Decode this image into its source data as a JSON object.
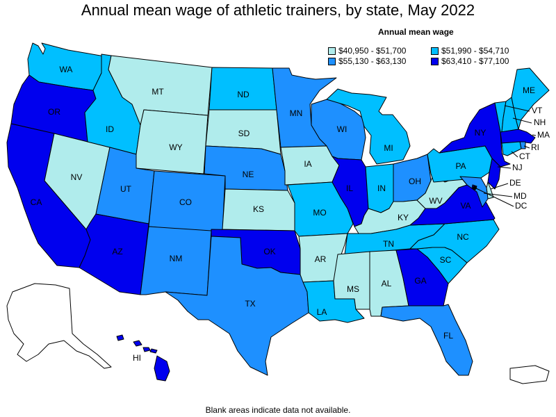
{
  "title": "Annual mean wage of athletic trainers, by state, May 2022",
  "legend": {
    "title": "Annual mean wage",
    "bins": [
      {
        "id": "b1",
        "label": "$40,950 - $51,700",
        "color": "#b0ecec"
      },
      {
        "id": "b2",
        "label": "$51,990 - $54,710",
        "color": "#00bfff"
      },
      {
        "id": "b3",
        "label": "$55,130 - $63,130",
        "color": "#1e90ff"
      },
      {
        "id": "b4",
        "label": "$63,410 - $77,100",
        "color": "#0000ee"
      }
    ]
  },
  "footnote": "Blank areas indicate data not available.",
  "states": {
    "WA": "b2",
    "OR": "b4",
    "CA": "b4",
    "NV": "b1",
    "ID": "b2",
    "MT": "b1",
    "WY": "b1",
    "UT": "b3",
    "AZ": "b4",
    "CO": "b3",
    "NM": "b3",
    "ND": "b2",
    "SD": "b1",
    "NE": "b3",
    "KS": "b1",
    "OK": "b4",
    "TX": "b3",
    "MN": "b3",
    "IA": "b1",
    "MO": "b2",
    "AR": "b1",
    "LA": "b2",
    "WI": "b3",
    "IL": "b4",
    "MI": "b2",
    "IN": "b2",
    "OH": "b3",
    "KY": "b1",
    "TN": "b2",
    "MS": "b1",
    "AL": "b1",
    "GA": "b4",
    "FL": "b3",
    "SC": "b2",
    "NC": "b2",
    "VA": "b4",
    "WV": "b1",
    "PA": "b2",
    "NY": "b4",
    "VT": "b2",
    "NH": "b2",
    "ME": "b2",
    "MA": "b4",
    "RI": "b3",
    "CT": "b2",
    "NJ": "b4",
    "DE": "b1",
    "MD": "b3",
    "DC": "b4",
    "HI": "b4",
    "AK": "",
    "PR": ""
  },
  "labels": {
    "WA": "WA",
    "OR": "OR",
    "CA": "CA",
    "NV": "NV",
    "ID": "ID",
    "MT": "MT",
    "WY": "WY",
    "UT": "UT",
    "AZ": "AZ",
    "CO": "CO",
    "NM": "NM",
    "ND": "ND",
    "SD": "SD",
    "NE": "NE",
    "KS": "KS",
    "OK": "OK",
    "TX": "TX",
    "MN": "MN",
    "IA": "IA",
    "MO": "MO",
    "AR": "AR",
    "LA": "LA",
    "WI": "WI",
    "IL": "IL",
    "MI": "MI",
    "IN": "IN",
    "OH": "OH",
    "KY": "KY",
    "TN": "TN",
    "MS": "MS",
    "AL": "AL",
    "GA": "GA",
    "FL": "FL",
    "SC": "SC",
    "NC": "NC",
    "VA": "VA",
    "WV": "WV",
    "PA": "PA",
    "NY": "NY",
    "VT": "VT",
    "NH": "NH",
    "ME": "ME",
    "MA": "MA",
    "RI": "RI",
    "CT": "CT",
    "NJ": "NJ",
    "DE": "DE",
    "MD": "MD",
    "DC": "DC",
    "HI": "HI"
  }
}
